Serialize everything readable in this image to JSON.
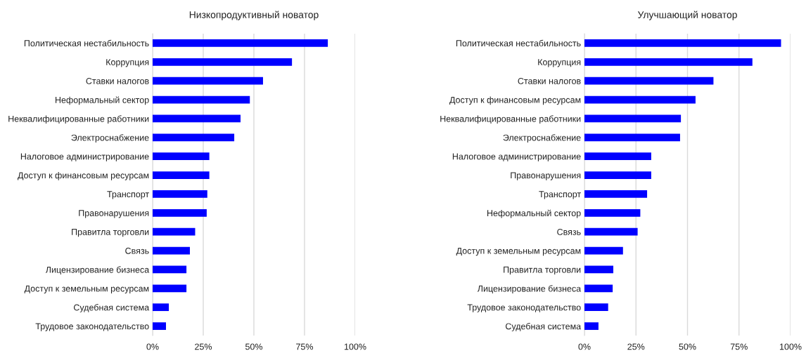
{
  "chart_data": [
    {
      "type": "bar",
      "orientation": "horizontal",
      "title": "Низкопродуктивный новатор",
      "categories": [
        "Политическая нестабильность",
        "Коррупция",
        "Ставки налогов",
        "Неформальный сектор",
        "Неквалифицированные работники",
        "Электроснабжение",
        "Налоговое администрирование",
        "Доступ к финансовым ресурсам",
        "Транспорт",
        "Правонарушения",
        "Правитла торговли",
        "Связь",
        "Лицензирование бизнеса",
        "Доступ к земельным ресурсам",
        "Судебная система",
        "Трудовое законодательство"
      ],
      "series": [
        {
          "color": "#0000ff",
          "values": [
            86.5,
            68.8,
            54.5,
            48,
            43.4,
            40.3,
            28,
            28,
            27,
            26.7,
            21,
            18.4,
            16.7,
            16.7,
            8,
            6.6
          ]
        }
      ],
      "xlim": [
        0,
        100
      ],
      "xticks": [
        {
          "value": 0,
          "label": "0%"
        },
        {
          "value": 25,
          "label": "25%"
        },
        {
          "value": 50,
          "label": "50%"
        },
        {
          "value": 75,
          "label": "75%"
        },
        {
          "value": 100,
          "label": "100%"
        }
      ],
      "grid": "x",
      "legend": false
    },
    {
      "type": "bar",
      "orientation": "horizontal",
      "title": "Улучшающий новатор",
      "categories": [
        "Политическая нестабильность",
        "Коррупция",
        "Ставки налогов",
        "Доступ к финансовым ресурсам",
        "Неквалифицированные работники",
        "Электроснабжение",
        "Налоговое администрирование",
        "Правонарушения",
        "Транспорт",
        "Неформальный сектор",
        "Связь",
        "Доступ к земельным ресурсам",
        "Правитла торговли",
        "Лицензирование бизнеса",
        "Трудовое законодательство",
        "Судебная система"
      ],
      "series": [
        {
          "color": "#0000ff",
          "values": [
            95.4,
            81.5,
            62.6,
            53.9,
            46.8,
            46.4,
            32.4,
            32.4,
            30.4,
            27.1,
            25.8,
            18.7,
            14,
            13.7,
            11.5,
            6.8
          ]
        }
      ],
      "xlim": [
        0,
        100
      ],
      "xticks": [
        {
          "value": 0,
          "label": "0%"
        },
        {
          "value": 25,
          "label": "25%"
        },
        {
          "value": 50,
          "label": "50%"
        },
        {
          "value": 75,
          "label": "75%"
        },
        {
          "value": 100,
          "label": "100%"
        }
      ],
      "grid": "x",
      "legend": false
    }
  ]
}
